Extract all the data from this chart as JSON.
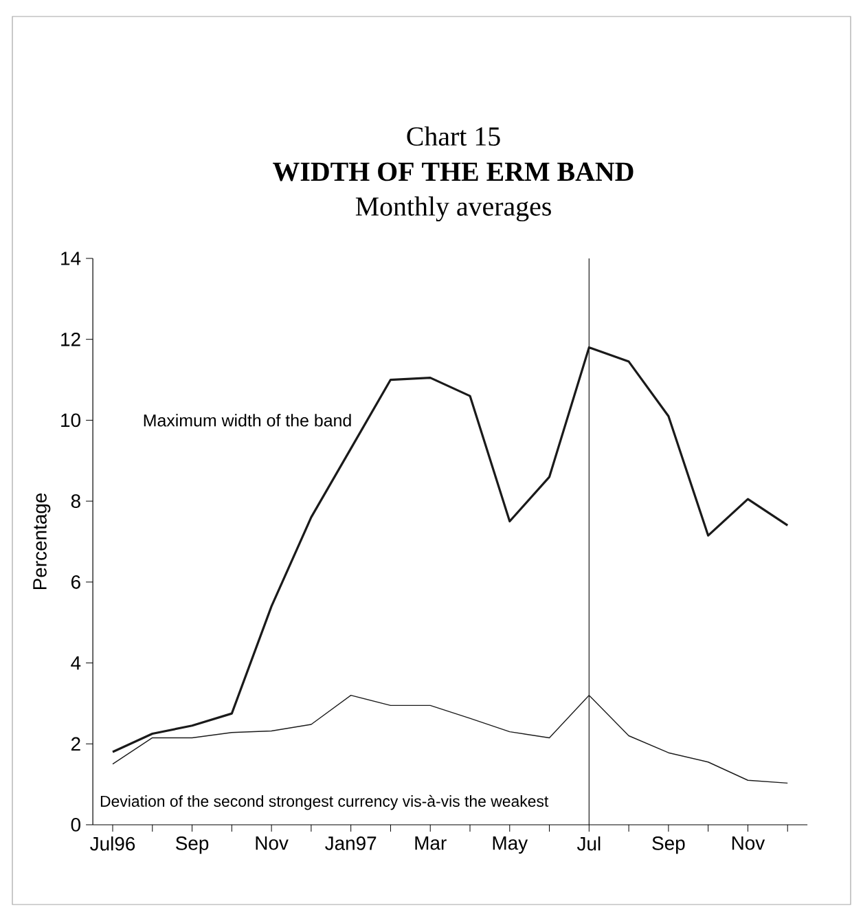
{
  "chart_data": {
    "type": "line",
    "title": "WIDTH OF THE ERM BAND",
    "subtitle": "Monthly averages",
    "ylabel": "Percentage",
    "annotations": [
      "Chart 15"
    ],
    "categories": [
      "Jul96",
      null,
      "Sep",
      null,
      "Nov",
      null,
      "Jan97",
      null,
      "Mar",
      null,
      "May",
      null,
      "Jul",
      null,
      "Sep",
      null,
      "Nov",
      null
    ],
    "series": [
      {
        "name": "Maximum width of the band",
        "color": "#1a1a1a",
        "values": [
          1.8,
          2.25,
          2.45,
          2.75,
          5.4,
          7.6,
          9.3,
          11.0,
          11.05,
          10.6,
          7.5,
          8.6,
          11.8,
          11.45,
          10.1,
          7.15,
          8.05,
          7.4
        ]
      },
      {
        "name": "Deviation of the second strongest currency vis-à-vis the weakest",
        "color": "#1a1a1a",
        "values": [
          1.5,
          2.15,
          2.15,
          2.28,
          2.32,
          2.48,
          3.2,
          2.95,
          2.95,
          2.63,
          2.3,
          2.15,
          3.2,
          2.2,
          1.78,
          1.55,
          1.1,
          1.03
        ]
      }
    ],
    "ylim": [
      0,
      14
    ],
    "yticks": [
      0,
      2,
      4,
      6,
      8,
      10,
      12,
      14
    ],
    "ref_lines": [
      {
        "axis": "x",
        "value": "Jul",
        "color": "#1a1a1a"
      }
    ],
    "grid": false,
    "legend": false,
    "marker": "none",
    "line_style": "solid"
  }
}
